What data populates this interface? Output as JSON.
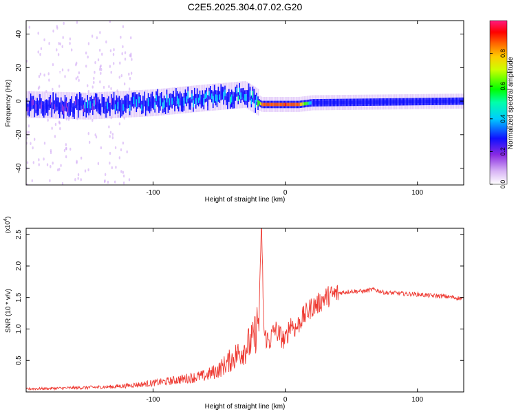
{
  "title": "C2E5.2025.304.07.02.G20",
  "colors": {
    "snr_line": "#ee3a32",
    "frame": "#000000"
  },
  "chart_data": [
    {
      "type": "heatmap",
      "xlabel": "Height of straight line (km)",
      "ylabel": "Frequency (Hz)",
      "xlim": [
        -196,
        135
      ],
      "ylim": [
        -50,
        48
      ],
      "x_ticks": [
        -100,
        0,
        100
      ],
      "y_ticks": [
        -40,
        -20,
        0,
        20,
        40
      ],
      "grid": false,
      "colorbar": {
        "label": "Normalized spectral amplitude",
        "range": [
          0,
          1
        ],
        "ticks": [
          0.0,
          0.2,
          0.4,
          0.6,
          0.8
        ],
        "colormap": [
          "#ffffff",
          "#8a2be2",
          "#0000ff",
          "#00ffff",
          "#00ff00",
          "#ffff00",
          "#ff8000",
          "#ff0000",
          "#ff1493"
        ]
      },
      "ridge": {
        "x": [
          -196,
          -150,
          -100,
          -60,
          -30,
          -22,
          -18,
          0,
          10,
          20,
          135
        ],
        "freq_center": [
          -2,
          -3,
          -1,
          2,
          4,
          0,
          -2,
          -2,
          -2,
          -1,
          0
        ],
        "amplitude": [
          0.3,
          0.35,
          0.4,
          0.4,
          0.45,
          0.4,
          0.9,
          0.95,
          0.9,
          0.4,
          0.35
        ]
      }
    },
    {
      "type": "line",
      "xlabel": "Height of straight line (km)",
      "ylabel": "SNR (10 * v/v)",
      "y_multiplier": "(x10^4)",
      "xlim": [
        -196,
        135
      ],
      "ylim": [
        0,
        2.6
      ],
      "x_ticks": [
        -100,
        0,
        100
      ],
      "y_ticks": [
        0.5,
        1.0,
        1.5,
        2.0,
        2.5
      ],
      "y_tick_labels": [
        "0.5",
        "1.0",
        "1.5",
        "2.0",
        "2.5"
      ],
      "grid": false,
      "series": [
        {
          "x": [
            -196,
            -170,
            -150,
            -130,
            -110,
            -90,
            -75,
            -60,
            -50,
            -40,
            -30,
            -24,
            -20,
            -18,
            -16,
            -12,
            -8,
            -4,
            0,
            4,
            8,
            12,
            16,
            20,
            25,
            30,
            40,
            50,
            60,
            67,
            75,
            90,
            100,
            110,
            120,
            135
          ],
          "y": [
            0.04,
            0.05,
            0.06,
            0.07,
            0.1,
            0.14,
            0.18,
            0.22,
            0.3,
            0.45,
            0.6,
            0.7,
            1.0,
            2.6,
            0.9,
            0.8,
            1.0,
            0.9,
            0.8,
            1.1,
            1.0,
            1.15,
            1.25,
            1.35,
            1.4,
            1.5,
            1.57,
            1.6,
            1.6,
            1.63,
            1.58,
            1.56,
            1.55,
            1.53,
            1.52,
            1.48
          ]
        }
      ]
    }
  ]
}
